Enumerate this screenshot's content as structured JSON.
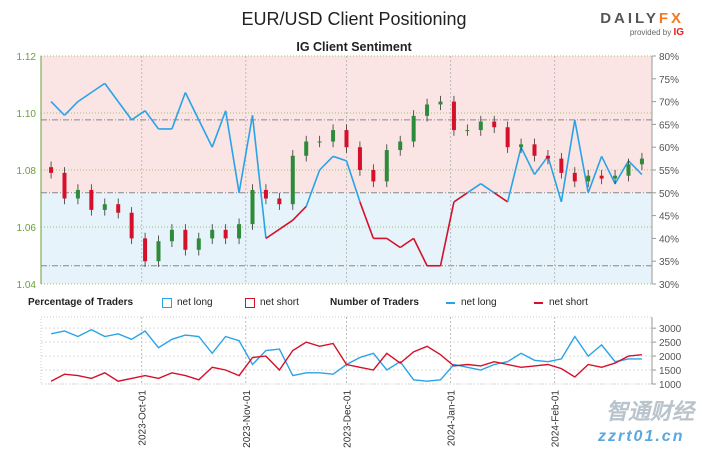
{
  "header": {
    "title": "EUR/USD Client Positioning",
    "subtitle": "IG Client Sentiment",
    "logo": "DAILYFX",
    "logo_by": "provided by IG"
  },
  "watermark": {
    "text": "zzrt01.cn",
    "chinese": "智通财经"
  },
  "legend": {
    "percentage_title": "Percentage of Traders",
    "pct_long": "net long",
    "pct_short": "net short",
    "number_title": "Number of Traders",
    "num_long": "net long",
    "num_short": "net short"
  },
  "colors": {
    "long": "#29a3e8",
    "short": "#d6102a",
    "up": "#2e8b3a",
    "down": "#d6102a",
    "bg_long": "#e6f3fb",
    "bg_short": "#fbe4e4",
    "price_axis": "#6a9f3a"
  },
  "chart_data": [
    {
      "type": "candlestick+line",
      "title": "IG Client Sentiment",
      "price_ylim": [
        1.04,
        1.12
      ],
      "price_ticks": [
        "1.04",
        "1.06",
        "1.08",
        "1.10",
        "1.12"
      ],
      "pct_ylim": [
        30,
        80
      ],
      "pct_ticks": [
        "30%",
        "35%",
        "40%",
        "45%",
        "50%",
        "55%",
        "60%",
        "65%",
        "70%",
        "75%",
        "80%"
      ],
      "reference_levels_pct": [
        66,
        50,
        34
      ],
      "grid": true,
      "dates": [
        "2023-09-04",
        "2023-09-08",
        "2023-09-12",
        "2023-09-16",
        "2023-09-20",
        "2023-09-24",
        "2023-09-28",
        "2023-10-02",
        "2023-10-06",
        "2023-10-10",
        "2023-10-14",
        "2023-10-18",
        "2023-10-22",
        "2023-10-26",
        "2023-10-30",
        "2023-11-03",
        "2023-11-07",
        "2023-11-11",
        "2023-11-15",
        "2023-11-19",
        "2023-11-23",
        "2023-11-27",
        "2023-12-01",
        "2023-12-05",
        "2023-12-09",
        "2023-12-13",
        "2023-12-17",
        "2023-12-21",
        "2023-12-25",
        "2023-12-29",
        "2024-01-02",
        "2024-01-06",
        "2024-01-10",
        "2024-01-14",
        "2024-01-18",
        "2024-01-22",
        "2024-01-26",
        "2024-01-30",
        "2024-02-03",
        "2024-02-07",
        "2024-02-11",
        "2024-02-15",
        "2024-02-19",
        "2024-02-23",
        "2024-02-27"
      ],
      "price_close": [
        1.079,
        1.07,
        1.073,
        1.066,
        1.068,
        1.065,
        1.056,
        1.048,
        1.055,
        1.059,
        1.052,
        1.056,
        1.059,
        1.056,
        1.061,
        1.073,
        1.07,
        1.068,
        1.085,
        1.09,
        1.09,
        1.094,
        1.088,
        1.08,
        1.076,
        1.087,
        1.09,
        1.099,
        1.103,
        1.104,
        1.094,
        1.094,
        1.097,
        1.095,
        1.088,
        1.089,
        1.085,
        1.084,
        1.079,
        1.076,
        1.078,
        1.077,
        1.078,
        1.082,
        1.084
      ],
      "net_long_pct": [
        70,
        67,
        70,
        72,
        74,
        70,
        66,
        68,
        64,
        64,
        72,
        66,
        60,
        68,
        50,
        67,
        40,
        42,
        44,
        47,
        55,
        58,
        57,
        48,
        40,
        40,
        38,
        40,
        34,
        34,
        48,
        50,
        52,
        50,
        48,
        60,
        54,
        58,
        48,
        66,
        50,
        58,
        52,
        57,
        54
      ]
    },
    {
      "type": "line",
      "ylim": [
        1000,
        3400
      ],
      "y_ticks": [
        "1000",
        "1500",
        "2000",
        "2500",
        "3000"
      ],
      "x_ticks": [
        "2023-Oct-01",
        "2023-Nov-01",
        "2023-Dec-01",
        "2024-Jan-01",
        "2024-Feb-01"
      ],
      "series": [
        {
          "name": "net long",
          "values": [
            2800,
            2900,
            2700,
            2950,
            2700,
            2800,
            2600,
            2900,
            2300,
            2600,
            2750,
            2700,
            2100,
            2700,
            2550,
            1700,
            2200,
            2250,
            1300,
            1400,
            1400,
            1350,
            1700,
            1950,
            2100,
            1500,
            1800,
            1150,
            1100,
            1150,
            1700,
            1600,
            1500,
            1700,
            1800,
            2100,
            1850,
            1800,
            1900,
            2700,
            2000,
            2400,
            1800,
            1900,
            1900
          ]
        },
        {
          "name": "net short",
          "values": [
            1100,
            1350,
            1300,
            1200,
            1400,
            1100,
            1200,
            1300,
            1200,
            1400,
            1300,
            1150,
            1600,
            1500,
            1300,
            1950,
            2000,
            1500,
            2200,
            2500,
            2350,
            2450,
            1700,
            1600,
            1500,
            2100,
            1750,
            2150,
            2350,
            2050,
            1650,
            1700,
            1650,
            1800,
            1700,
            1600,
            1650,
            1700,
            1550,
            1250,
            1700,
            1600,
            1750,
            2000,
            2050
          ]
        }
      ]
    }
  ]
}
